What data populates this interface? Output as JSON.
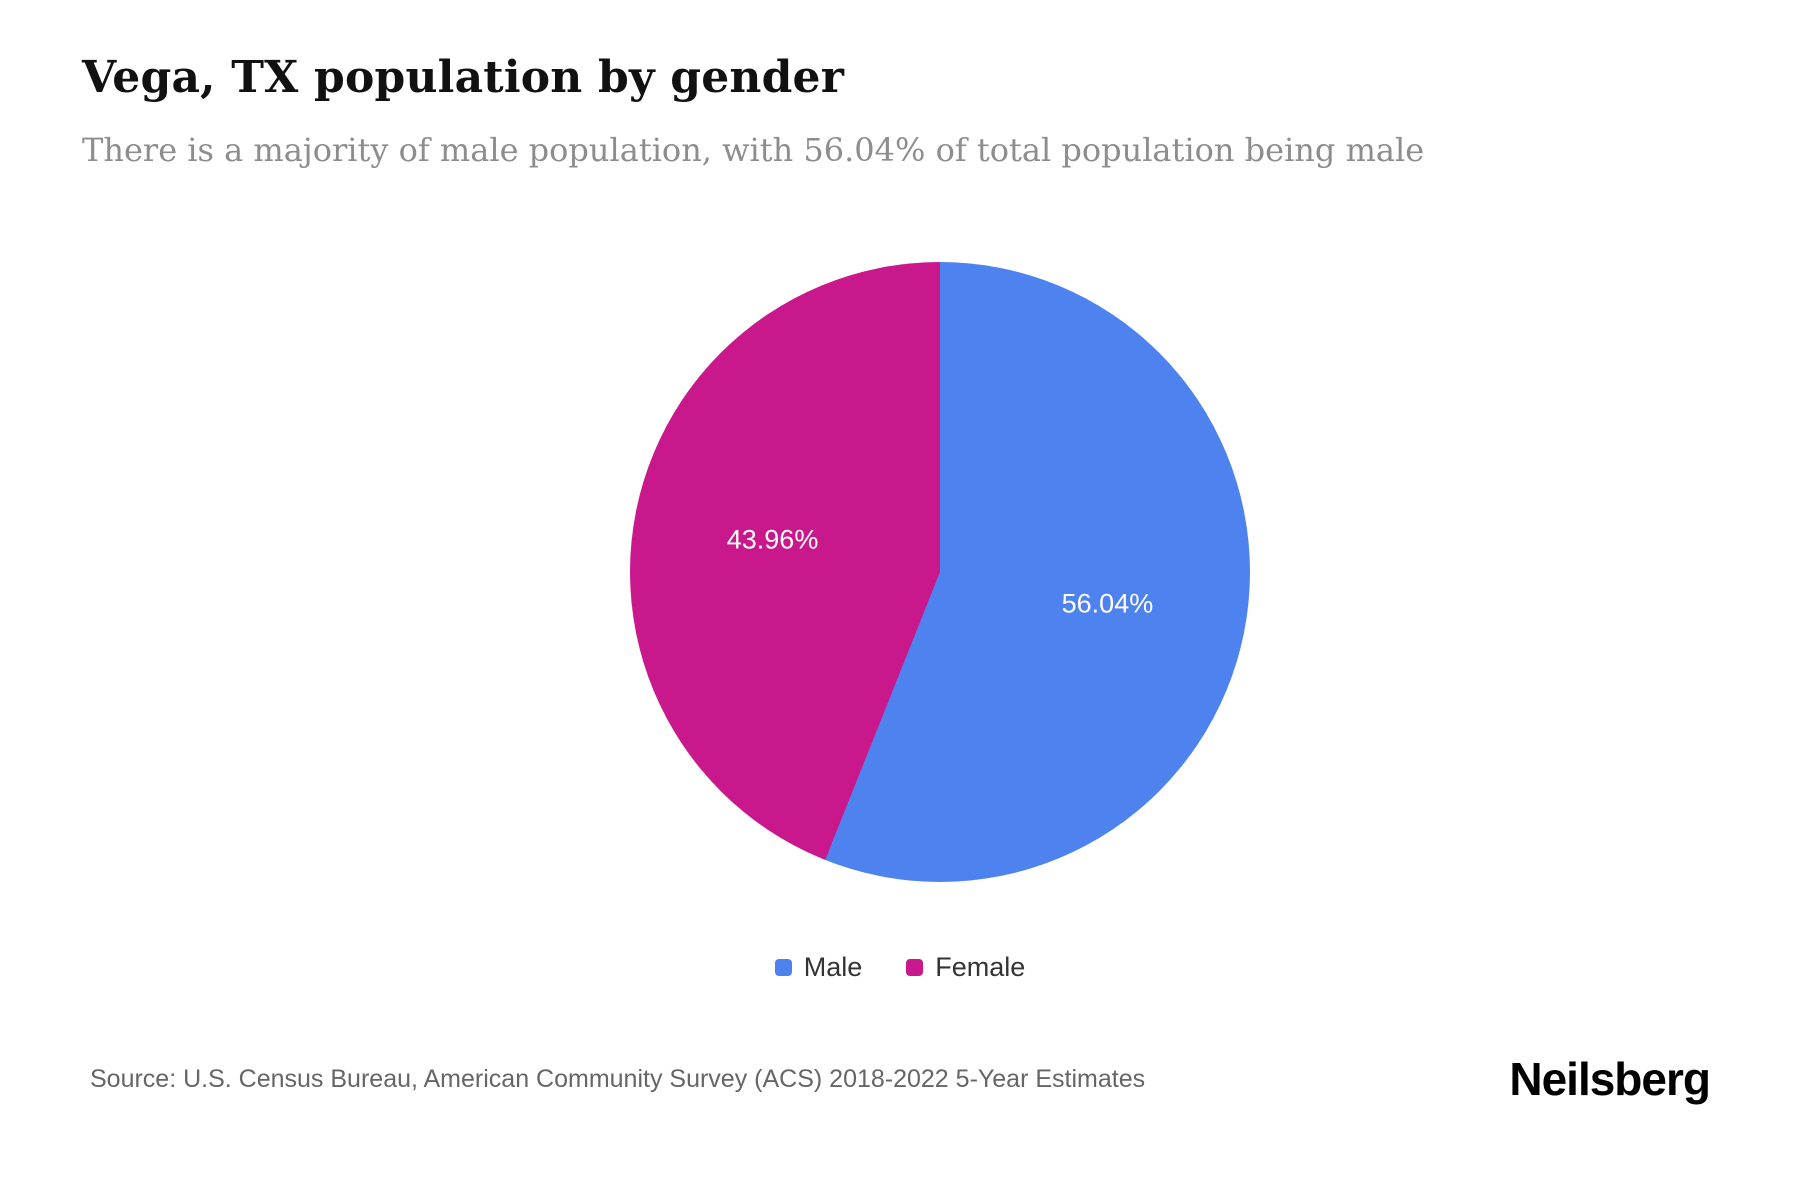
{
  "header": {
    "title": "Vega, TX population by gender",
    "subtitle": "There is a majority of male population, with 56.04% of total population being male"
  },
  "chart_data": {
    "type": "pie",
    "title": "Vega, TX population by gender",
    "start_angle_deg": 0,
    "direction": "clockwise",
    "legend_position": "bottom",
    "slices": [
      {
        "label": "Male",
        "value": 56.04,
        "display": "56.04%",
        "color": "#4e82ee"
      },
      {
        "label": "Female",
        "value": 43.96,
        "display": "43.96%",
        "color": "#c9188c"
      }
    ]
  },
  "footer": {
    "source": "Source: U.S. Census Bureau, American Community Survey (ACS) 2018-2022 5-Year Estimates",
    "brand": "Neilsberg"
  }
}
